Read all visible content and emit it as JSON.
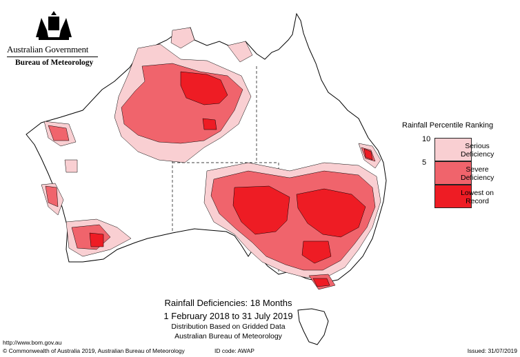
{
  "header": {
    "government": "Australian Government",
    "bureau": "Bureau of Meteorology"
  },
  "legend": {
    "title": "Rainfall Percentile Ranking",
    "ticks": [
      "10",
      "5"
    ],
    "items": [
      {
        "label_line1": "Serious",
        "label_line2": "Deficiency",
        "color": "#f9cfd2"
      },
      {
        "label_line1": "Severe",
        "label_line2": "Deficiency",
        "color": "#f0646c"
      },
      {
        "label_line1": "Lowest on",
        "label_line2": "Record",
        "color": "#ee1c24"
      }
    ]
  },
  "caption": {
    "title": "Rainfall Deficiencies: 18 Months",
    "period": "1 February 2018 to 31 July 2019",
    "line3": "Distribution Based on Gridded Data",
    "line4": "Australian Bureau of Meteorology"
  },
  "footer": {
    "url": "http://www.bom.gov.au",
    "copyright": "© Commonwealth of Australia 2019, Australian Bureau of Meteorology",
    "id_code": "ID code: AWAP",
    "issued": "Issued: 31/07/2019"
  },
  "colors": {
    "serious": "#f9cfd2",
    "severe": "#f0646c",
    "lowest": "#ee1c24",
    "outline": "#000000"
  }
}
